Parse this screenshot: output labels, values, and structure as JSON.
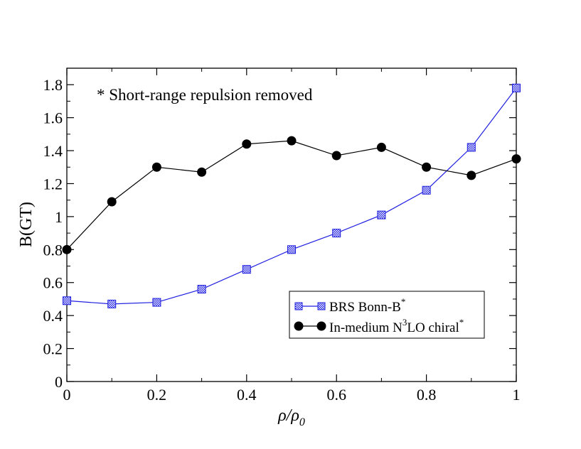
{
  "chart_data": {
    "type": "line",
    "title": "",
    "xlabel": "ρ/ρ0",
    "xlabel_main": "ρ/ρ",
    "xlabel_sub": "0",
    "ylabel": "B(GT)",
    "xlim": [
      0,
      1
    ],
    "ylim": [
      0,
      1.9
    ],
    "x_ticks": [
      0,
      0.2,
      0.4,
      0.6,
      0.8,
      1
    ],
    "x_tick_labels": [
      "0",
      "0.2",
      "0.4",
      "0.6",
      "0.8",
      "1"
    ],
    "y_ticks": [
      0,
      0.2,
      0.4,
      0.6,
      0.8,
      1,
      1.2,
      1.4,
      1.6,
      1.8
    ],
    "y_tick_labels": [
      "0",
      "0.2",
      "0.4",
      "0.6",
      "0.8",
      "1",
      "1.2",
      "1.4",
      "1.6",
      "1.8"
    ],
    "grid": false,
    "legend_position": "bottom-right",
    "annotation": "* Short-range repulsion removed",
    "series": [
      {
        "name": "BRS Bonn-B*",
        "label_main": "BRS Bonn-B",
        "label_sup": "*",
        "color": "#1f1fe0",
        "marker": "hatched-square",
        "x": [
          0,
          0.1,
          0.2,
          0.3,
          0.4,
          0.5,
          0.6,
          0.7,
          0.8,
          0.9,
          1.0
        ],
        "values": [
          0.49,
          0.47,
          0.48,
          0.56,
          0.68,
          0.8,
          0.9,
          1.01,
          1.16,
          1.42,
          1.78
        ]
      },
      {
        "name": "In-medium N3LO chiral*",
        "label_pre": "In-medium N",
        "label_sup1": "3",
        "label_mid": "LO chiral",
        "label_sup2": "*",
        "color": "#000000",
        "marker": "filled-circle",
        "x": [
          0,
          0.1,
          0.2,
          0.3,
          0.4,
          0.5,
          0.6,
          0.7,
          0.8,
          0.9,
          1.0
        ],
        "values": [
          0.8,
          1.09,
          1.3,
          1.27,
          1.44,
          1.46,
          1.37,
          1.42,
          1.3,
          1.25,
          1.35
        ]
      }
    ]
  }
}
